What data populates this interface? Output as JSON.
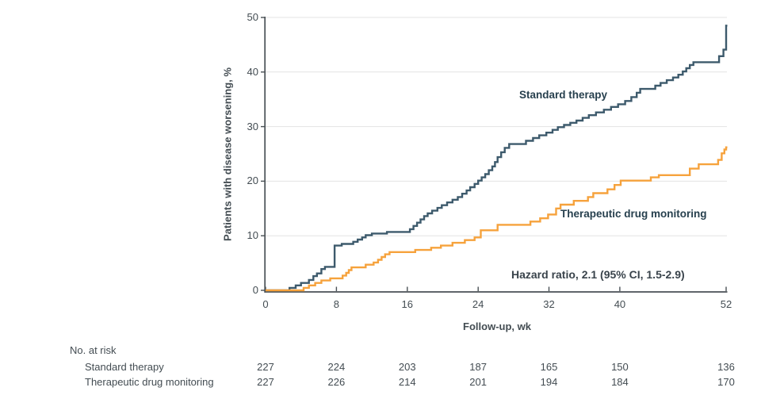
{
  "chart_data": {
    "type": "line",
    "subtype": "kaplan-meier-cumulative-incidence-step",
    "title": "",
    "xlabel": "Follow-up, wk",
    "ylabel": "Patients with disease worsening, %",
    "xlim": [
      0,
      52
    ],
    "ylim": [
      0,
      50
    ],
    "x_ticks": [
      0,
      8,
      16,
      24,
      32,
      40,
      52
    ],
    "y_ticks": [
      0,
      10,
      20,
      30,
      40,
      50
    ],
    "grid": "horizontal-light-gray",
    "legend_position": "inline-labels-on-plot",
    "annotation": "Hazard ratio, 2.1 (95% CI, 1.5-2.9)",
    "colors": {
      "standard_therapy": "#3d5a6c",
      "therapeutic_drug_monitoring": "#f6a23c",
      "axis": "#4a5156",
      "gridline": "#e3e3e3",
      "text": "#434c52"
    },
    "series": [
      {
        "name": "Standard therapy",
        "color": "#3d5a6c",
        "steps": [
          [
            0,
            0
          ],
          [
            2.7,
            0.45
          ],
          [
            3.4,
            0.9
          ],
          [
            4.0,
            1.35
          ],
          [
            4.9,
            1.9
          ],
          [
            5.4,
            2.6
          ],
          [
            5.8,
            3.1
          ],
          [
            6.3,
            3.9
          ],
          [
            6.7,
            4.3
          ],
          [
            7.8,
            8.2
          ],
          [
            8.6,
            8.5
          ],
          [
            9.9,
            8.9
          ],
          [
            10.4,
            9.3
          ],
          [
            10.9,
            9.7
          ],
          [
            11.3,
            10.1
          ],
          [
            12.0,
            10.4
          ],
          [
            13.7,
            10.7
          ],
          [
            16.3,
            11.2
          ],
          [
            16.7,
            11.8
          ],
          [
            17.1,
            12.4
          ],
          [
            17.5,
            13.0
          ],
          [
            17.9,
            13.6
          ],
          [
            18.3,
            14.1
          ],
          [
            18.8,
            14.6
          ],
          [
            19.4,
            15.1
          ],
          [
            19.9,
            15.6
          ],
          [
            20.5,
            16.1
          ],
          [
            21.1,
            16.6
          ],
          [
            21.7,
            17.1
          ],
          [
            22.2,
            17.7
          ],
          [
            22.7,
            18.3
          ],
          [
            23.1,
            18.9
          ],
          [
            23.6,
            19.5
          ],
          [
            24.0,
            20.1
          ],
          [
            24.4,
            20.7
          ],
          [
            24.8,
            21.3
          ],
          [
            25.2,
            22.0
          ],
          [
            25.6,
            22.7
          ],
          [
            25.9,
            23.5
          ],
          [
            26.2,
            24.4
          ],
          [
            26.6,
            25.3
          ],
          [
            27.0,
            26.1
          ],
          [
            27.5,
            26.8
          ],
          [
            29.4,
            27.4
          ],
          [
            30.2,
            27.9
          ],
          [
            30.9,
            28.4
          ],
          [
            31.7,
            28.9
          ],
          [
            32.4,
            29.4
          ],
          [
            33.0,
            29.9
          ],
          [
            33.7,
            30.3
          ],
          [
            34.4,
            30.7
          ],
          [
            35.1,
            31.1
          ],
          [
            35.8,
            31.6
          ],
          [
            36.5,
            32.1
          ],
          [
            37.3,
            32.6
          ],
          [
            38.2,
            33.1
          ],
          [
            39.0,
            33.6
          ],
          [
            39.8,
            34.1
          ],
          [
            40.6,
            34.7
          ],
          [
            41.3,
            35.4
          ],
          [
            41.9,
            36.2
          ],
          [
            42.3,
            36.9
          ],
          [
            44.0,
            37.5
          ],
          [
            44.6,
            38.0
          ],
          [
            45.3,
            38.5
          ],
          [
            46.0,
            39.0
          ],
          [
            46.6,
            39.5
          ],
          [
            47.1,
            40.1
          ],
          [
            47.5,
            40.7
          ],
          [
            47.9,
            41.3
          ],
          [
            48.3,
            41.8
          ],
          [
            51.2,
            42.9
          ],
          [
            51.7,
            44.1
          ],
          [
            52,
            48.5
          ]
        ]
      },
      {
        "name": "Therapeutic drug monitoring",
        "color": "#f6a23c",
        "steps": [
          [
            0,
            0
          ],
          [
            4.3,
            0.45
          ],
          [
            4.9,
            0.9
          ],
          [
            5.6,
            1.35
          ],
          [
            6.3,
            1.8
          ],
          [
            7.3,
            2.2
          ],
          [
            8.7,
            2.7
          ],
          [
            9.1,
            3.2
          ],
          [
            9.4,
            3.7
          ],
          [
            9.7,
            4.2
          ],
          [
            11.3,
            4.7
          ],
          [
            12.2,
            5.1
          ],
          [
            12.7,
            5.6
          ],
          [
            13.1,
            6.1
          ],
          [
            13.5,
            6.6
          ],
          [
            14.0,
            7.0
          ],
          [
            16.9,
            7.4
          ],
          [
            18.7,
            7.8
          ],
          [
            19.8,
            8.2
          ],
          [
            21.1,
            8.7
          ],
          [
            22.5,
            9.2
          ],
          [
            23.6,
            9.7
          ],
          [
            24.3,
            11.0
          ],
          [
            26.2,
            12.0
          ],
          [
            29.9,
            12.6
          ],
          [
            31.0,
            13.2
          ],
          [
            31.9,
            13.9
          ],
          [
            32.8,
            15.0
          ],
          [
            33.3,
            15.7
          ],
          [
            34.8,
            16.4
          ],
          [
            36.4,
            17.1
          ],
          [
            37.0,
            17.8
          ],
          [
            38.6,
            18.5
          ],
          [
            39.4,
            19.3
          ],
          [
            40.1,
            20.1
          ],
          [
            43.5,
            20.7
          ],
          [
            44.4,
            21.1
          ],
          [
            47.9,
            22.3
          ],
          [
            48.9,
            23.1
          ],
          [
            51.1,
            23.9
          ],
          [
            51.5,
            25.1
          ],
          [
            51.8,
            25.8
          ],
          [
            52,
            26.2
          ]
        ]
      }
    ],
    "at_risk": {
      "title": "No. at risk",
      "timepoints": [
        0,
        8,
        16,
        24,
        32,
        40,
        52
      ],
      "rows": [
        {
          "label": "Standard therapy",
          "values": [
            227,
            224,
            203,
            187,
            165,
            150,
            136
          ]
        },
        {
          "label": "Therapeutic drug monitoring",
          "values": [
            227,
            226,
            214,
            201,
            194,
            184,
            170
          ]
        }
      ]
    }
  }
}
